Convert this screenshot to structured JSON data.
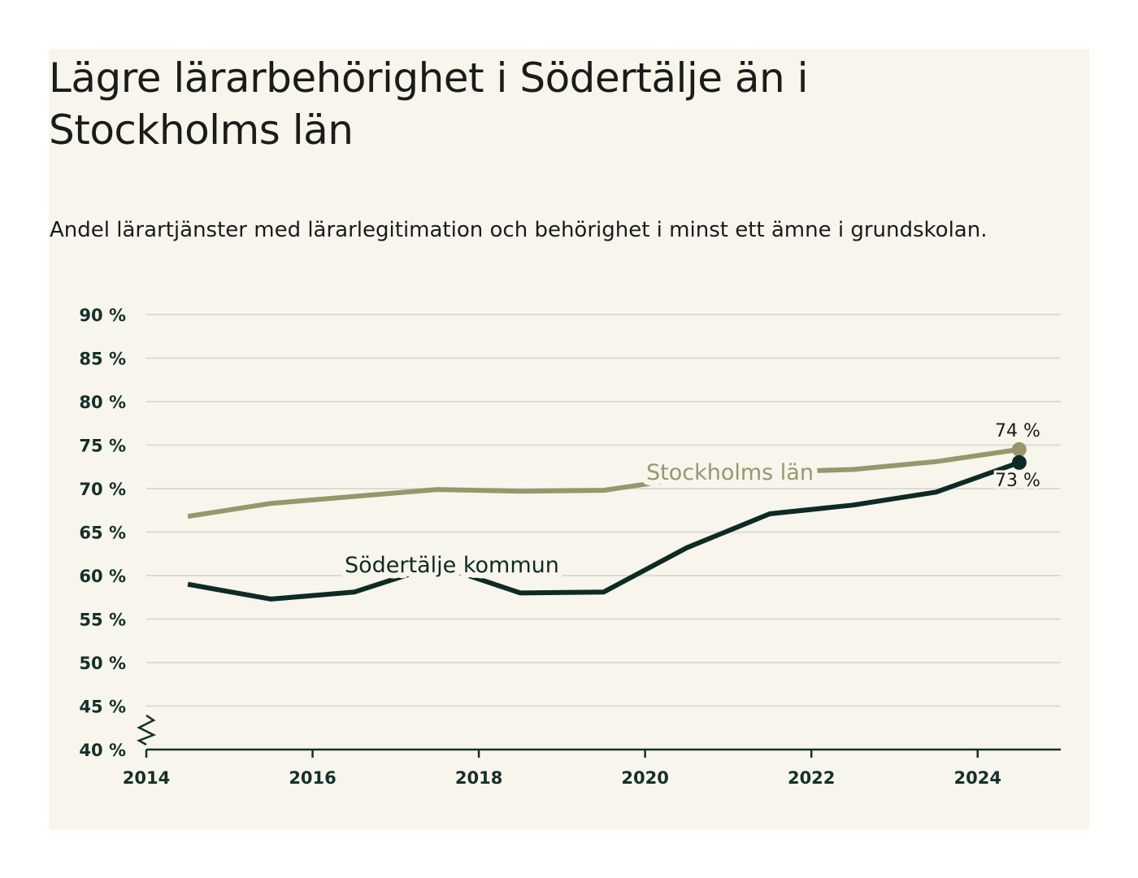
{
  "title": "Lägre lärarbehörighet i Södertälje än i Stockholms län",
  "subtitle": "Andel lärartjänster med lärarlegitimation och behörighet i minst ett ämne i grundskolan.",
  "colors": {
    "background": "#f7f5ec",
    "gridline": "#dcdad2",
    "axis": "#14302a",
    "sodertalje": "#0e2a24",
    "stockholm": "#9a966c"
  },
  "chart_data": {
    "type": "line",
    "title": "Lägre lärarbehörighet i Södertälje än i Stockholms län",
    "subtitle": "Andel lärartjänster med lärarlegitimation och behörighet i minst ett ämne i grundskolan.",
    "xlabel": "",
    "ylabel": "",
    "xlim": [
      2014,
      2025
    ],
    "ylim": [
      40,
      90
    ],
    "y_axis_break": true,
    "grid": true,
    "legend": "inline",
    "x_ticks": [
      2014,
      2016,
      2018,
      2020,
      2022,
      2024
    ],
    "x_tick_labels": [
      "2014",
      "2016",
      "2018",
      "2020",
      "2022",
      "2024"
    ],
    "y_ticks": [
      40,
      45,
      50,
      55,
      60,
      65,
      70,
      75,
      80,
      85,
      90
    ],
    "y_tick_labels": [
      "40 %",
      "45 %",
      "50 %",
      "55 %",
      "60 %",
      "65 %",
      "70 %",
      "75 %",
      "80 %",
      "85 %",
      "90 %"
    ],
    "series": [
      {
        "name": "Stockholms län",
        "color": "#9a966c",
        "x": [
          2014.5,
          2015.5,
          2016.5,
          2017.5,
          2018.5,
          2019.5,
          2020.5,
          2021.5,
          2022.5,
          2023.5,
          2024.5
        ],
        "values": [
          66.8,
          68.3,
          69.1,
          69.9,
          69.7,
          69.8,
          71.2,
          71.9,
          72.2,
          73.1,
          74.5
        ],
        "end_label": "74 %"
      },
      {
        "name": "Södertälje kommun",
        "color": "#0e2a24",
        "x": [
          2014.5,
          2015.5,
          2016.5,
          2017.5,
          2018.5,
          2019.5,
          2020.5,
          2021.5,
          2022.5,
          2023.5,
          2024.5
        ],
        "values": [
          59.0,
          57.3,
          58.1,
          61.2,
          58.0,
          58.1,
          63.2,
          67.1,
          68.1,
          69.6,
          73.0
        ],
        "end_label": "73 %"
      }
    ]
  }
}
